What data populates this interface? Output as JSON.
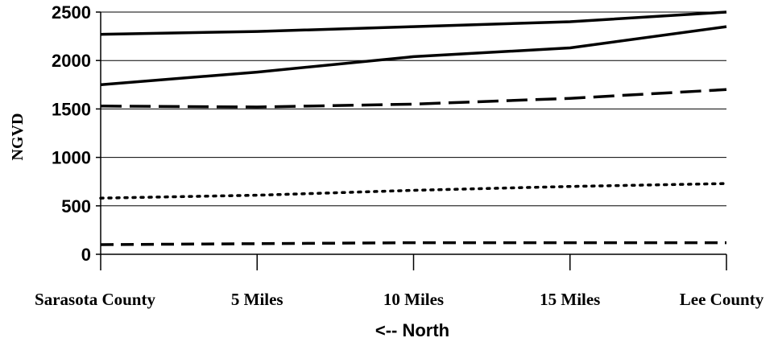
{
  "chart_data": {
    "type": "line",
    "title": "",
    "xlabel": "<-- North",
    "ylabel": "NGVD",
    "categories": [
      "Sarasota County",
      "5 Miles",
      "10 Miles",
      "15 Miles",
      "Lee County"
    ],
    "ylim": [
      0,
      2500
    ],
    "yticks": [
      0,
      500,
      1000,
      1500,
      2000,
      2500
    ],
    "grid": "horizontal",
    "legend": "none",
    "series": [
      {
        "values": [
          2270,
          2300,
          2350,
          2400,
          2500
        ],
        "style": "solid"
      },
      {
        "values": [
          1750,
          1880,
          2040,
          2130,
          2350
        ],
        "style": "solid"
      },
      {
        "values": [
          1530,
          1520,
          1550,
          1610,
          1700
        ],
        "style": "long-dash"
      },
      {
        "values": [
          580,
          610,
          660,
          700,
          730
        ],
        "style": "dotted"
      },
      {
        "values": [
          100,
          110,
          120,
          120,
          120
        ],
        "style": "dash"
      }
    ]
  }
}
